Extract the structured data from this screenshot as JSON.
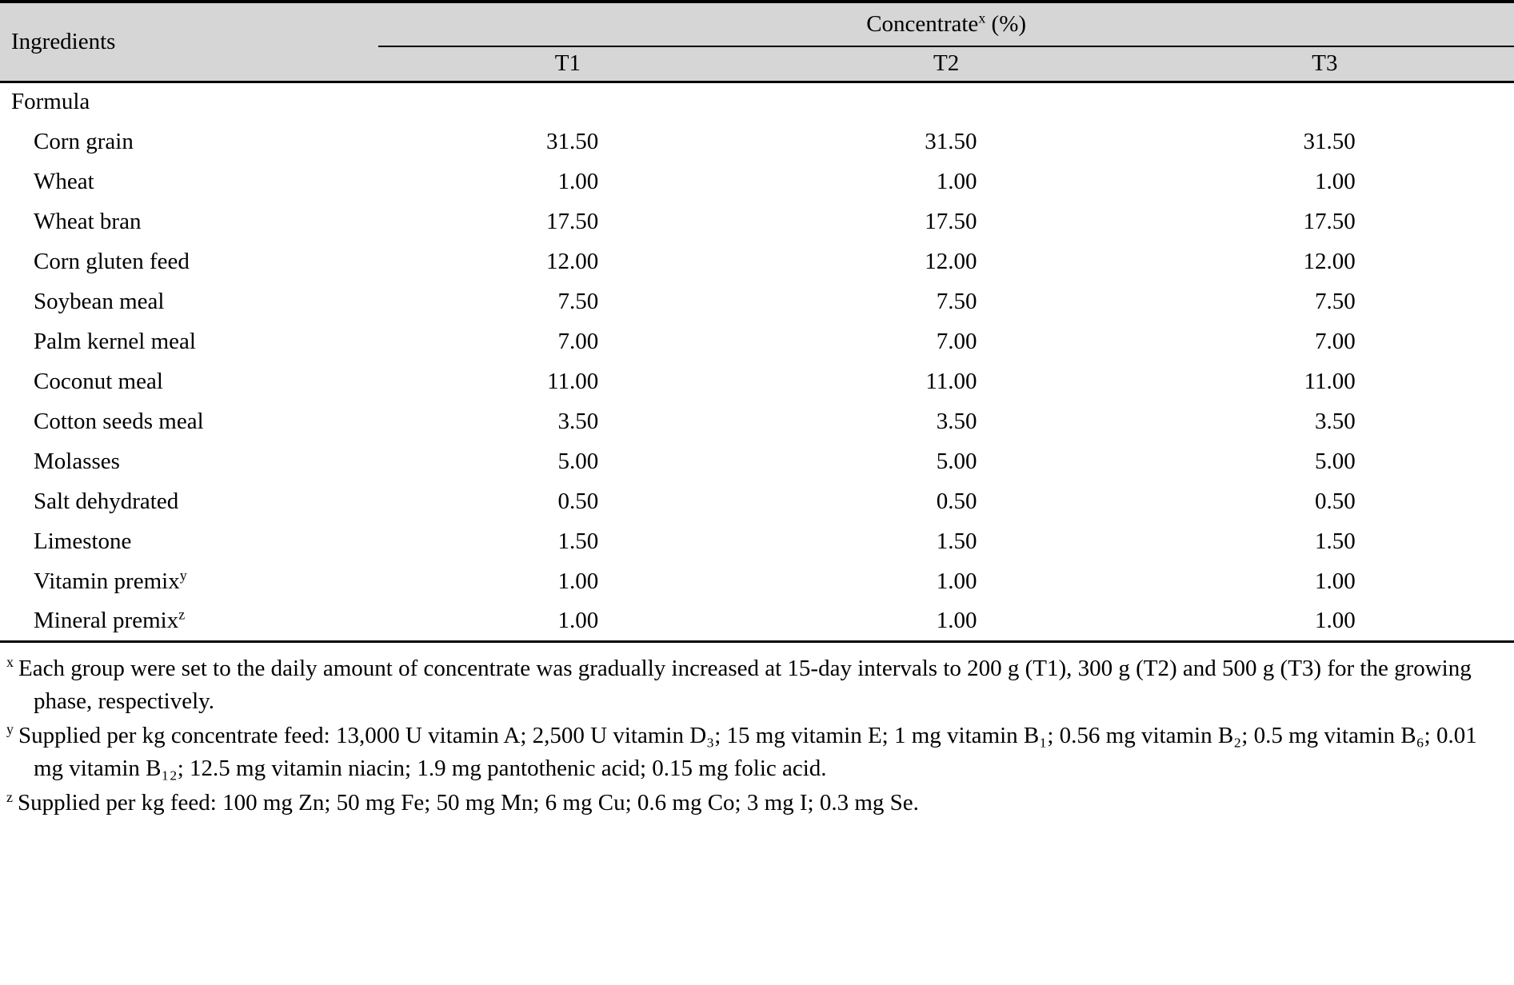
{
  "table": {
    "header": {
      "ingredients": "Ingredients",
      "group_label": "Concentrate",
      "group_sup": "x",
      "group_unit": " (%)",
      "columns": [
        "T1",
        "T2",
        "T3"
      ]
    },
    "section_label": "Formula",
    "rows": [
      {
        "label": "Corn grain",
        "sup": "",
        "values": [
          "31.50",
          "31.50",
          "31.50"
        ]
      },
      {
        "label": "Wheat",
        "sup": "",
        "values": [
          "1.00",
          "1.00",
          "1.00"
        ]
      },
      {
        "label": "Wheat bran",
        "sup": "",
        "values": [
          "17.50",
          "17.50",
          "17.50"
        ]
      },
      {
        "label": "Corn gluten feed",
        "sup": "",
        "values": [
          "12.00",
          "12.00",
          "12.00"
        ]
      },
      {
        "label": "Soybean meal",
        "sup": "",
        "values": [
          "7.50",
          "7.50",
          "7.50"
        ]
      },
      {
        "label": "Palm kernel meal",
        "sup": "",
        "values": [
          "7.00",
          "7.00",
          "7.00"
        ]
      },
      {
        "label": "Coconut meal",
        "sup": "",
        "values": [
          "11.00",
          "11.00",
          "11.00"
        ]
      },
      {
        "label": "Cotton seeds meal",
        "sup": "",
        "values": [
          "3.50",
          "3.50",
          "3.50"
        ]
      },
      {
        "label": "Molasses",
        "sup": "",
        "values": [
          "5.00",
          "5.00",
          "5.00"
        ]
      },
      {
        "label": "Salt dehydrated",
        "sup": "",
        "values": [
          "0.50",
          "0.50",
          "0.50"
        ]
      },
      {
        "label": "Limestone",
        "sup": "",
        "values": [
          "1.50",
          "1.50",
          "1.50"
        ]
      },
      {
        "label": "Vitamin premix",
        "sup": "y",
        "values": [
          "1.00",
          "1.00",
          "1.00"
        ]
      },
      {
        "label": "Mineral premix",
        "sup": "z",
        "values": [
          "1.00",
          "1.00",
          "1.00"
        ]
      }
    ]
  },
  "footnotes": [
    {
      "marker": "x",
      "text": "Each group were set to the daily amount of concentrate was gradually increased at 15-day intervals to 200 g (T1), 300 g (T2) and 500 g (T3) for the growing phase, respectively."
    },
    {
      "marker": "y",
      "text": "Supplied per kg concentrate feed: 13,000 U vitamin A; 2,500 U vitamin D₃; 15 mg vitamin E; 1 mg vitamin B₁; 0.56 mg vitamin B₂; 0.5 mg vitamin B₆; 0.01 mg vitamin B₁₂; 12.5 mg vitamin niacin; 1.9 mg pantothenic acid; 0.15 mg folic acid."
    },
    {
      "marker": "z",
      "text": "Supplied per kg feed: 100 mg Zn; 50 mg Fe; 50 mg Mn; 6 mg Cu; 0.6 mg Co; 3 mg I; 0.3 mg Se."
    }
  ],
  "colors": {
    "header_bg": "#d6d6d6",
    "rule": "#000000"
  }
}
